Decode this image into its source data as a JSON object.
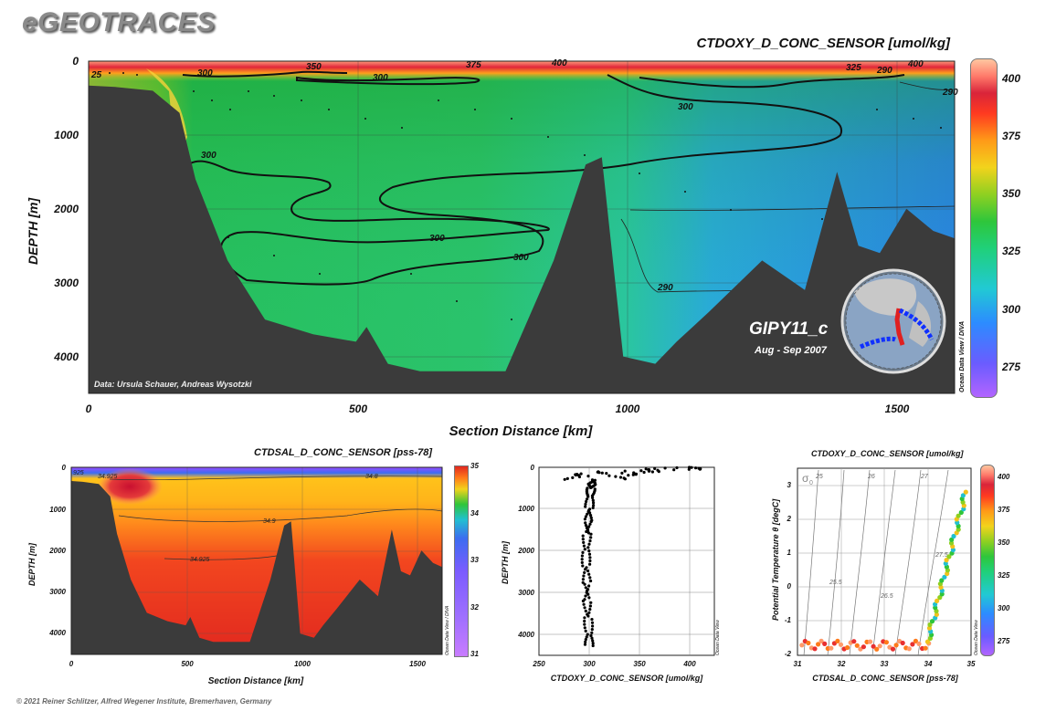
{
  "brand": "eGEOTRACES",
  "footer": "© 2021 Reiner Schlitzer, Alfred Wegener Institute, Bremerhaven, Germany",
  "main_section": {
    "title": "CTDOXY_D_CONC_SENSOR [umol/kg]",
    "y_label": "DEPTH [m]",
    "x_label": "Section Distance [km]",
    "y_ticks": [
      "0",
      "1000",
      "2000",
      "3000",
      "4000"
    ],
    "x_ticks": [
      "0",
      "500",
      "1000",
      "1500"
    ],
    "colorbar_ticks": [
      "400",
      "375",
      "350",
      "325",
      "300",
      "275"
    ],
    "contour_labels": [
      "300",
      "300",
      "300",
      "300",
      "300",
      "300",
      "290",
      "290",
      "325",
      "350",
      "375",
      "400",
      "400",
      "290",
      "25"
    ],
    "data_credit": "Data: Ursula Schauer, Andreas Wysotzki",
    "cruise": "GIPY11_c",
    "cruise_dates": "Aug - Sep 2007",
    "side_credit": "Ocean Data View / DIVA"
  },
  "salinity_section": {
    "title": "CTDSAL_D_CONC_SENSOR [pss-78]",
    "y_label": "DEPTH [m]",
    "x_label": "Section Distance [km]",
    "y_ticks": [
      "0",
      "1000",
      "2000",
      "3000",
      "4000"
    ],
    "x_ticks": [
      "0",
      "500",
      "1000",
      "1500"
    ],
    "colorbar_ticks": [
      "35",
      "34",
      "33",
      "32",
      "31"
    ],
    "contour_labels": [
      "34.925",
      "34.8",
      "34.9",
      "34.925",
      "925"
    ],
    "side_credit": "Ocean Data View / DIVA"
  },
  "profile_plot": {
    "x_label": "CTDOXY_D_CONC_SENSOR [umol/kg]",
    "y_label": "DEPTH [m]",
    "x_ticks": [
      "250",
      "300",
      "350",
      "400"
    ],
    "y_ticks": [
      "0",
      "1000",
      "2000",
      "3000",
      "4000"
    ],
    "side_credit": "Ocean Data View"
  },
  "ts_plot": {
    "title": "CTDOXY_D_CONC_SENSOR [umol/kg]",
    "x_label": "CTDSAL_D_CONC_SENSOR [pss-78]",
    "y_label": "Potential Temperature θ [degC]",
    "x_ticks": [
      "31",
      "32",
      "33",
      "34",
      "35"
    ],
    "y_ticks": [
      "3",
      "2",
      "1",
      "0",
      "-1",
      "-2"
    ],
    "sigma_symbol": "σ",
    "sigma_sub": "0",
    "isopycnal_labels": [
      "25",
      "26",
      "27",
      "25.5",
      "26.5",
      "27.5"
    ],
    "colorbar_ticks": [
      "400",
      "375",
      "350",
      "325",
      "300",
      "275"
    ],
    "side_credit": "Ocean Data View"
  },
  "chart_data": [
    {
      "type": "heatmap",
      "title": "CTDOXY_D_CONC_SENSOR [umol/kg]",
      "xlabel": "Section Distance [km]",
      "ylabel": "DEPTH [m]",
      "xlim": [
        0,
        1620
      ],
      "ylim": [
        4500,
        0
      ],
      "colorbar_range": [
        265,
        410
      ],
      "contour_levels": [
        290,
        300,
        325,
        350,
        375,
        400
      ],
      "bathymetry_km": [
        0,
        50,
        120,
        170,
        200,
        260,
        330,
        420,
        500,
        520,
        560,
        620,
        700,
        780,
        840,
        870,
        930,
        960,
        1000,
        1060,
        1100,
        1160,
        1260,
        1340,
        1400,
        1440,
        1480,
        1530,
        1580,
        1620
      ],
      "bathymetry_depth_m": [
        330,
        350,
        400,
        700,
        1600,
        2700,
        3500,
        3700,
        3800,
        3600,
        4100,
        4200,
        4200,
        4200,
        3200,
        2700,
        1400,
        1300,
        4000,
        4100,
        3800,
        3400,
        2700,
        3100,
        1500,
        2500,
        2600,
        2000,
        2300,
        2400
      ]
    },
    {
      "type": "heatmap",
      "title": "CTDSAL_D_CONC_SENSOR [pss-78]",
      "xlabel": "Section Distance [km]",
      "ylabel": "DEPTH [m]",
      "xlim": [
        0,
        1620
      ],
      "ylim": [
        4500,
        0
      ],
      "colorbar_range": [
        31,
        35
      ],
      "contour_levels": [
        34.8,
        34.9,
        34.925
      ]
    },
    {
      "type": "scatter",
      "xlabel": "CTDOXY_D_CONC_SENSOR [umol/kg]",
      "ylabel": "DEPTH [m]",
      "xlim": [
        250,
        425
      ],
      "ylim": [
        4500,
        0
      ],
      "points_note_depth_m": [
        0,
        50,
        100,
        150,
        200,
        300,
        400,
        500,
        700,
        1000,
        1300,
        1600,
        2000,
        2400,
        2800,
        3200,
        3600,
        4000,
        4300
      ],
      "points_note_oxygen": [
        400,
        380,
        340,
        320,
        312,
        305,
        303,
        302,
        301,
        300,
        299,
        298,
        297,
        297,
        298,
        298,
        299,
        300,
        300
      ]
    },
    {
      "type": "scatter",
      "title": "CTDOXY_D_CONC_SENSOR [umol/kg]",
      "xlabel": "CTDSAL_D_CONC_SENSOR [pss-78]",
      "ylabel": "Potential Temperature θ [degC]",
      "xlim": [
        31,
        35
      ],
      "ylim": [
        -2,
        3.5
      ],
      "colorbar_range": [
        265,
        410
      ],
      "isopycnals": [
        25,
        25.5,
        26,
        26.5,
        27,
        27.5
      ]
    }
  ]
}
